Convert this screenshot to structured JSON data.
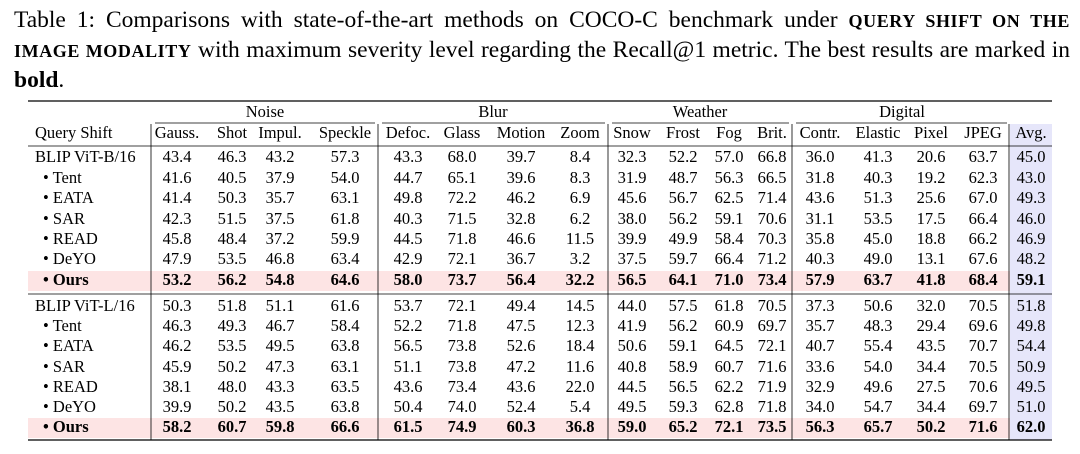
{
  "caption": {
    "prefix": "Table 1: Comparisons with state-of-the-art methods on COCO-C benchmark under ",
    "emphasis": "QUERY SHIFT ON THE IMAGE MODALITY",
    "middle": " with maximum severity level regarding the Recall@1 metric. The best results are marked in ",
    "bold": "bold",
    "end": "."
  },
  "table": {
    "groups": [
      "Noise",
      "Blur",
      "Weather",
      "Digital"
    ],
    "columns": [
      "Query Shift",
      "Gauss.",
      "Shot",
      "Impul.",
      "Speckle",
      "Defoc.",
      "Glass",
      "Motion",
      "Zoom",
      "Snow",
      "Frost",
      "Fog",
      "Brit.",
      "Contr.",
      "Elastic",
      "Pixel",
      "JPEG",
      "Avg."
    ],
    "rows": [
      {
        "cells": [
          "BLIP ViT-B/16",
          "43.4",
          "46.3",
          "43.2",
          "57.3",
          "43.3",
          "68.0",
          "39.7",
          "8.4",
          "32.3",
          "52.2",
          "57.0",
          "66.8",
          "36.0",
          "41.3",
          "20.6",
          "63.7",
          "45.0"
        ]
      },
      {
        "cells": [
          "• Tent",
          "41.6",
          "40.5",
          "37.9",
          "54.0",
          "44.7",
          "65.1",
          "39.6",
          "8.3",
          "31.9",
          "48.7",
          "56.3",
          "66.5",
          "31.8",
          "40.3",
          "19.2",
          "62.3",
          "43.0"
        ]
      },
      {
        "cells": [
          "• EATA",
          "41.4",
          "50.3",
          "35.7",
          "63.1",
          "49.8",
          "72.2",
          "46.2",
          "6.9",
          "45.6",
          "56.7",
          "62.5",
          "71.4",
          "43.6",
          "51.3",
          "25.6",
          "67.0",
          "49.3"
        ]
      },
      {
        "cells": [
          "• SAR",
          "42.3",
          "51.5",
          "37.5",
          "61.8",
          "40.3",
          "71.5",
          "32.8",
          "6.2",
          "38.0",
          "56.2",
          "59.1",
          "70.6",
          "31.1",
          "53.5",
          "17.5",
          "66.4",
          "46.0"
        ]
      },
      {
        "cells": [
          "• READ",
          "45.8",
          "48.4",
          "37.2",
          "59.9",
          "44.5",
          "71.8",
          "46.6",
          "11.5",
          "39.9",
          "49.9",
          "58.4",
          "70.3",
          "35.8",
          "45.0",
          "18.8",
          "66.2",
          "46.9"
        ]
      },
      {
        "cells": [
          "• DeYO",
          "47.9",
          "53.5",
          "46.8",
          "63.4",
          "42.9",
          "72.1",
          "36.7",
          "3.2",
          "37.5",
          "59.7",
          "66.4",
          "71.2",
          "40.3",
          "49.0",
          "13.1",
          "67.6",
          "48.2"
        ]
      },
      {
        "cells": [
          "• Ours",
          "53.2",
          "56.2",
          "54.8",
          "64.6",
          "58.0",
          "73.7",
          "56.4",
          "32.2",
          "56.5",
          "64.1",
          "71.0",
          "73.4",
          "57.9",
          "63.7",
          "41.8",
          "68.4",
          "59.1"
        ],
        "bold": true
      },
      {
        "cells": [
          "BLIP ViT-L/16",
          "50.3",
          "51.8",
          "51.1",
          "61.6",
          "53.7",
          "72.1",
          "49.4",
          "14.5",
          "44.0",
          "57.5",
          "61.8",
          "70.5",
          "37.3",
          "50.6",
          "32.0",
          "70.5",
          "51.8"
        ]
      },
      {
        "cells": [
          "• Tent",
          "46.3",
          "49.3",
          "46.7",
          "58.4",
          "52.2",
          "71.8",
          "47.5",
          "12.3",
          "41.9",
          "56.2",
          "60.9",
          "69.7",
          "35.7",
          "48.3",
          "29.4",
          "69.6",
          "49.8"
        ]
      },
      {
        "cells": [
          "• EATA",
          "46.2",
          "53.5",
          "49.5",
          "63.8",
          "56.5",
          "73.8",
          "52.6",
          "18.4",
          "50.6",
          "59.1",
          "64.5",
          "72.1",
          "40.7",
          "55.4",
          "43.5",
          "70.7",
          "54.4"
        ]
      },
      {
        "cells": [
          "• SAR",
          "45.9",
          "50.2",
          "47.3",
          "63.1",
          "51.1",
          "73.8",
          "47.2",
          "11.6",
          "40.8",
          "58.9",
          "60.7",
          "71.6",
          "33.6",
          "54.0",
          "34.4",
          "70.5",
          "50.9"
        ]
      },
      {
        "cells": [
          "• READ",
          "38.1",
          "48.0",
          "43.3",
          "63.5",
          "43.6",
          "73.4",
          "43.6",
          "22.0",
          "44.5",
          "56.5",
          "62.2",
          "71.9",
          "32.9",
          "49.6",
          "27.5",
          "70.6",
          "49.5"
        ]
      },
      {
        "cells": [
          "• DeYO",
          "39.9",
          "50.2",
          "43.5",
          "63.8",
          "50.4",
          "74.0",
          "52.4",
          "5.4",
          "49.5",
          "59.3",
          "62.8",
          "71.8",
          "34.0",
          "54.7",
          "34.4",
          "69.7",
          "51.0"
        ]
      },
      {
        "cells": [
          "• Ours",
          "58.2",
          "60.7",
          "59.8",
          "66.6",
          "61.5",
          "74.9",
          "60.3",
          "36.8",
          "59.0",
          "65.2",
          "72.1",
          "73.5",
          "56.3",
          "65.7",
          "50.2",
          "71.6",
          "62.0"
        ],
        "bold": true
      }
    ]
  }
}
